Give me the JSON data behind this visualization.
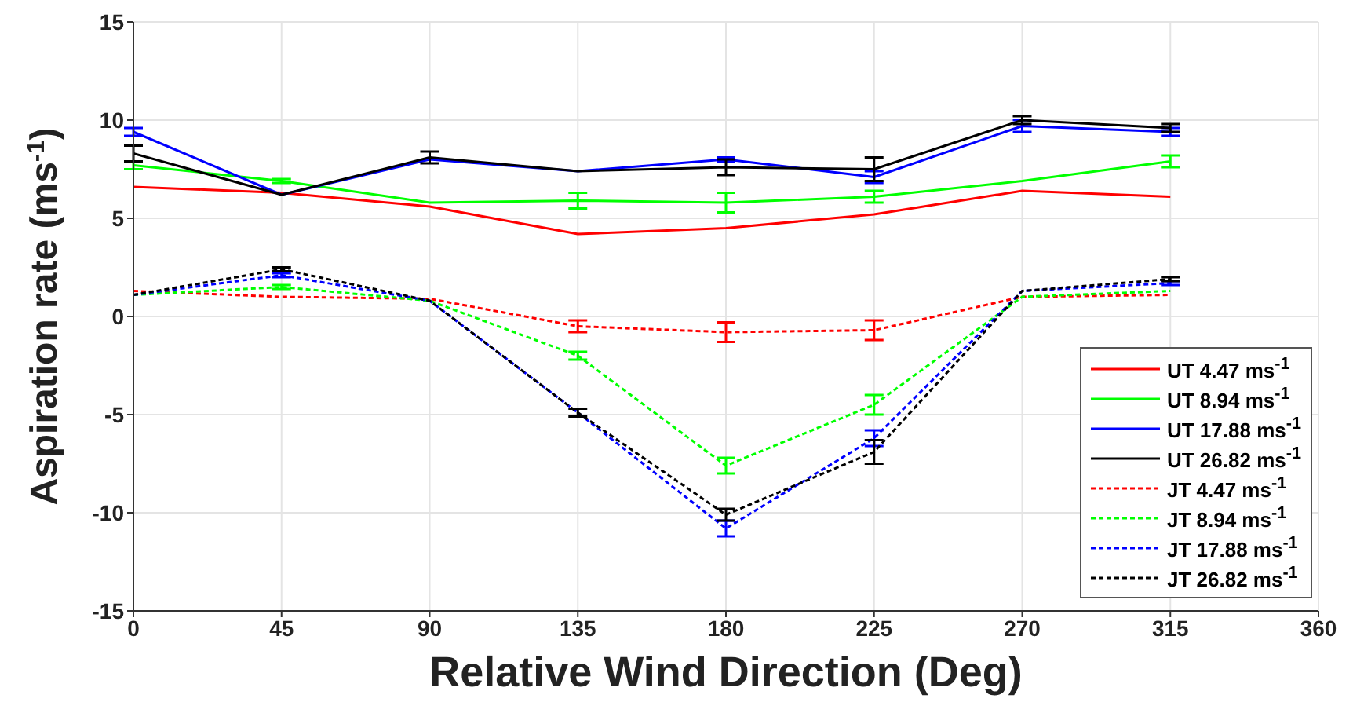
{
  "chart_data": {
    "type": "line",
    "xlabel": "Relative Wind Direction (Deg)",
    "ylabel": "Aspiration rate (ms$^{-1}$)",
    "x": [
      0,
      45,
      90,
      135,
      180,
      225,
      270,
      315
    ],
    "xlim": [
      0,
      360
    ],
    "xticks": [
      0,
      45,
      90,
      135,
      180,
      225,
      270,
      315,
      360
    ],
    "ylim": [
      -15,
      15
    ],
    "yticks": [
      -15,
      -10,
      -5,
      0,
      5,
      10,
      15
    ],
    "grid": true,
    "legend": "bottom right",
    "marker": "none",
    "series": [
      {
        "name": "UT 4.47 ms$^{-1}$",
        "color": "#ff0000",
        "line_style": "solid",
        "values": [
          6.6,
          6.3,
          5.6,
          4.2,
          4.5,
          5.2,
          6.4,
          6.1
        ],
        "errors": [
          null,
          null,
          null,
          null,
          null,
          null,
          null,
          null
        ]
      },
      {
        "name": "UT 8.94 ms$^{-1}$",
        "color": "#00ff00",
        "line_style": "solid",
        "values": [
          7.7,
          6.9,
          5.8,
          5.9,
          5.8,
          6.1,
          6.9,
          7.9
        ],
        "errors": [
          0.2,
          0.1,
          null,
          0.4,
          0.5,
          0.3,
          null,
          0.3
        ]
      },
      {
        "name": "UT 17.88 ms$^{-1}$",
        "color": "#0000ff",
        "line_style": "solid",
        "values": [
          9.4,
          6.2,
          8.0,
          7.4,
          8.0,
          7.1,
          9.7,
          9.4
        ],
        "errors": [
          0.2,
          null,
          null,
          null,
          0.1,
          0.3,
          0.3,
          0.2
        ]
      },
      {
        "name": "UT 26.82 ms$^{-1}$",
        "color": "#000000",
        "line_style": "solid",
        "values": [
          8.3,
          6.2,
          8.1,
          7.4,
          7.6,
          7.5,
          10.0,
          9.6
        ],
        "errors": [
          0.4,
          null,
          0.3,
          null,
          0.4,
          0.6,
          0.2,
          0.2
        ]
      },
      {
        "name": "JT 4.47 ms$^{-1}$",
        "color": "#ff0000",
        "line_style": "dashed",
        "values": [
          1.3,
          1.0,
          0.9,
          -0.5,
          -0.8,
          -0.7,
          1.0,
          1.1
        ],
        "errors": [
          null,
          null,
          null,
          0.3,
          0.5,
          0.5,
          null,
          null
        ]
      },
      {
        "name": "JT 8.94 ms$^{-1}$",
        "color": "#00ff00",
        "line_style": "dashed",
        "values": [
          1.1,
          1.5,
          0.8,
          -2.0,
          -7.6,
          -4.5,
          1.0,
          1.3
        ],
        "errors": [
          null,
          0.1,
          null,
          0.2,
          0.4,
          0.5,
          null,
          null
        ]
      },
      {
        "name": "JT 17.88 ms$^{-1}$",
        "color": "#0000ff",
        "line_style": "dashed",
        "values": [
          1.1,
          2.1,
          0.8,
          -4.9,
          -10.8,
          -6.2,
          1.3,
          1.7
        ],
        "errors": [
          null,
          0.1,
          null,
          null,
          0.4,
          0.4,
          null,
          0.1
        ]
      },
      {
        "name": "JT 26.82 ms$^{-1}$",
        "color": "#000000",
        "line_style": "dashed",
        "values": [
          1.1,
          2.4,
          0.8,
          -4.9,
          -10.1,
          -6.9,
          1.3,
          1.9
        ],
        "errors": [
          null,
          0.1,
          null,
          0.2,
          0.3,
          0.6,
          null,
          0.1
        ]
      }
    ]
  }
}
